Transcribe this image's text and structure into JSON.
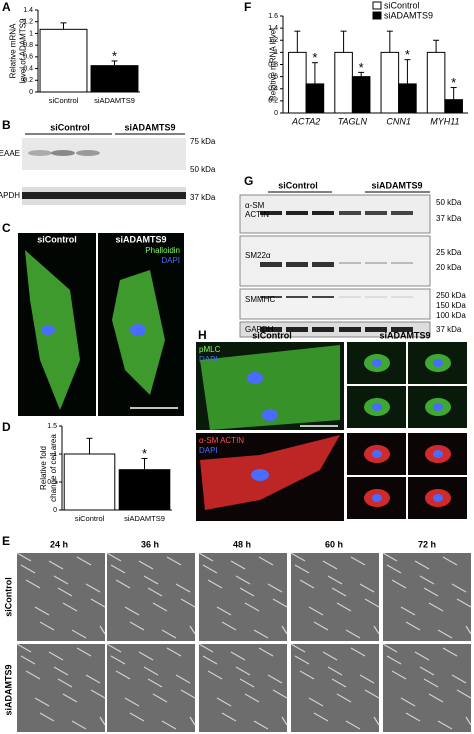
{
  "chart_data": [
    {
      "panel": "A",
      "type": "bar",
      "ylabel": [
        "Relative mRNA",
        "level of ADAMTS9"
      ],
      "categories": [
        "siControl",
        "siADAMTS9"
      ],
      "values": [
        1.07,
        0.45
      ],
      "errors": [
        0.11,
        0.08
      ],
      "colors": [
        "#ffffff",
        "#000000"
      ],
      "significance": [
        null,
        "*"
      ],
      "ylim": [
        0,
        1.4
      ],
      "yticks": [
        0,
        0.2,
        0.4,
        0.6,
        0.8,
        1,
        1.2,
        1.4
      ]
    },
    {
      "panel": "D",
      "type": "bar",
      "ylabel": [
        "Relative fold",
        "change of cell area"
      ],
      "categories": [
        "siControl",
        "siADAMTS9"
      ],
      "values": [
        1.0,
        0.72
      ],
      "errors": [
        0.28,
        0.2
      ],
      "colors": [
        "#ffffff",
        "#000000"
      ],
      "significance": [
        null,
        "*"
      ],
      "ylim": [
        0,
        1.5
      ],
      "yticks": [
        0,
        0.5,
        1,
        1.5
      ]
    },
    {
      "panel": "F",
      "type": "bar",
      "ylabel": [
        "Relative mRNA level"
      ],
      "categories": [
        "ACTA2",
        "TAGLN",
        "CNN1",
        "MYH11"
      ],
      "series": [
        {
          "name": "siControl",
          "color": "#ffffff",
          "values": [
            1,
            1,
            1,
            1
          ],
          "errors": [
            0.35,
            0.35,
            0.35,
            0.2
          ],
          "significance": [
            null,
            null,
            null,
            null
          ]
        },
        {
          "name": "siADAMTS9",
          "color": "#000000",
          "values": [
            0.48,
            0.6,
            0.48,
            0.22
          ],
          "errors": [
            0.35,
            0.07,
            0.4,
            0.2
          ],
          "significance": [
            "*",
            "*",
            "*",
            "*"
          ]
        }
      ],
      "legend": "top-right",
      "ylim": [
        0,
        1.6
      ],
      "yticks": [
        0,
        0.2,
        0.4,
        0.6,
        0.8,
        1,
        1.2,
        1.4,
        1.6
      ]
    }
  ],
  "panel_B": {
    "panel": "B",
    "columns": [
      "siControl",
      "siADAMTS9"
    ],
    "rows": [
      "DPEAAE",
      "GAPDH"
    ],
    "markers": [
      "75 kDa",
      "50 kDa",
      "37 kDa"
    ]
  },
  "panel_C": {
    "panel": "C",
    "columns": [
      "siControl",
      "siADAMTS9"
    ],
    "stains": [
      "Phalloidin",
      "DAPI"
    ]
  },
  "panel_E": {
    "panel": "E",
    "times": [
      "24 h",
      "36 h",
      "48 h",
      "60 h",
      "72 h"
    ],
    "rows": [
      "siControl",
      "siADAMTS9"
    ]
  },
  "panel_G": {
    "panel": "G",
    "columns": [
      "siControl",
      "siADAMTS9"
    ],
    "rows": [
      [
        "α-SM",
        "ACTIN"
      ],
      [
        "SM22α"
      ],
      [
        "SMMHC"
      ],
      [
        "GAPDH"
      ]
    ],
    "markers": [
      "50 kDa",
      "37 kDa",
      "25 kDa",
      "20 kDa",
      "250 kDa",
      "150 kDa",
      "100 kDa",
      "37 kDa"
    ]
  },
  "panel_H": {
    "panel": "H",
    "columns": [
      "siControl",
      "siADAMTS9"
    ],
    "stains_top": [
      "pMLC",
      "DAPI"
    ],
    "stains_bottom": [
      "α-SM ACTIN",
      "DAPI"
    ]
  }
}
